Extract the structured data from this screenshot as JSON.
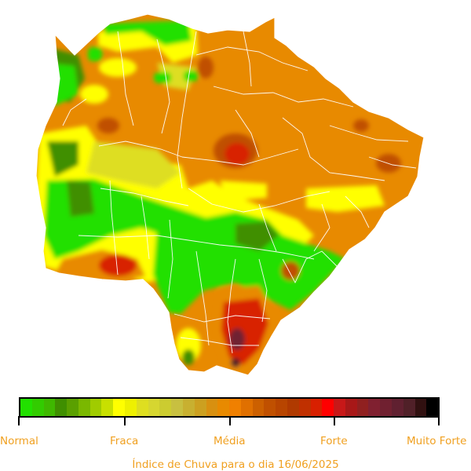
{
  "legend": {
    "colors": [
      "#22e000",
      "#32cc00",
      "#3fb800",
      "#3f8f00",
      "#5aa000",
      "#7ab800",
      "#a0cc00",
      "#c8e000",
      "#ffff00",
      "#eef000",
      "#dede20",
      "#d6d630",
      "#cccc30",
      "#c8c040",
      "#c8b030",
      "#cca020",
      "#d89010",
      "#e88a00",
      "#f08000",
      "#e07000",
      "#cc6000",
      "#c05000",
      "#b84500",
      "#b03a00",
      "#c03000",
      "#d82000",
      "#ff0000",
      "#c81818",
      "#a81818",
      "#902020",
      "#802030",
      "#702030",
      "#602030",
      "#502028",
      "#301010",
      "#000000"
    ],
    "labels": [
      "Normal",
      "Fraca",
      "Média",
      "Forte",
      "Muito Forte"
    ]
  },
  "caption": "Índice de Chuva para o dia 16/06/2025",
  "colors": {
    "normal_green": "#22e000",
    "dark_green": "#3f8f00",
    "yellow": "#ffff00",
    "olive": "#c8b030",
    "orange": "#e88a00",
    "dark_orange": "#c05000",
    "red": "#d82000",
    "dark_red": "#702030",
    "label_text": "#f0a020"
  }
}
